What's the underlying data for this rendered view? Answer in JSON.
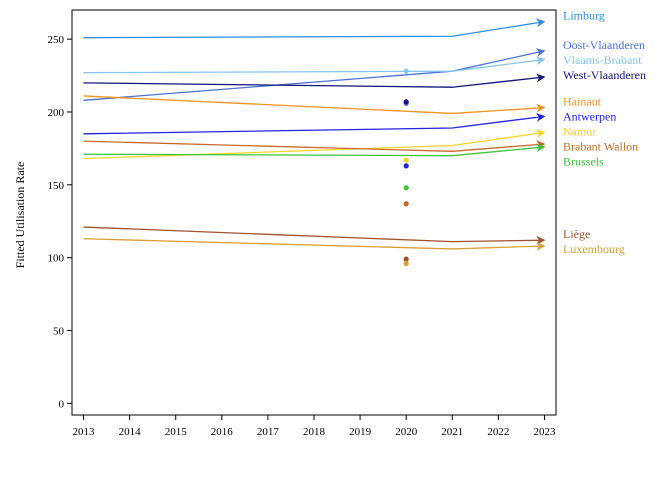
{
  "chart_data": {
    "type": "line",
    "title": "",
    "xlabel": "",
    "ylabel": "Fitted Utilisation Rate",
    "xlim": [
      2012.75,
      2023.25
    ],
    "ylim": [
      -8,
      270
    ],
    "x_ticks": [
      2013,
      2014,
      2015,
      2016,
      2017,
      2018,
      2019,
      2020,
      2021,
      2022,
      2023
    ],
    "y_ticks": [
      0,
      50,
      100,
      150,
      200,
      250
    ],
    "grid": false,
    "legend": "right (labels at line ends)",
    "series": [
      {
        "name": "Limburg",
        "color": "#2b8fe6",
        "x": [
          2013,
          2021,
          2023
        ],
        "y": [
          251,
          252,
          262
        ],
        "observed_2020": null
      },
      {
        "name": "Oost-Vlaanderen",
        "color": "#4a72d8",
        "x": [
          2013,
          2021,
          2023
        ],
        "y": [
          208,
          228,
          242
        ],
        "observed_2020": 206
      },
      {
        "name": "Vlaams-Brabant",
        "color": "#84c5ef",
        "x": [
          2013,
          2021,
          2023
        ],
        "y": [
          227,
          228,
          236
        ],
        "observed_2020": 228
      },
      {
        "name": "West-Vlaanderen",
        "color": "#13137a",
        "x": [
          2013,
          2021,
          2023
        ],
        "y": [
          220,
          217,
          224
        ],
        "observed_2020": 207
      },
      {
        "name": "Hainaut",
        "color": "#f5931e",
        "x": [
          2013,
          2021,
          2023
        ],
        "y": [
          211,
          199,
          203
        ],
        "observed_2020": null
      },
      {
        "name": "Antwerpen",
        "color": "#2222e6",
        "x": [
          2013,
          2021,
          2023
        ],
        "y": [
          185,
          189,
          197
        ],
        "observed_2020": 163
      },
      {
        "name": "Namur",
        "color": "#f7d228",
        "x": [
          2013,
          2021,
          2023
        ],
        "y": [
          168,
          177,
          186
        ],
        "observed_2020": 167
      },
      {
        "name": "Brabant Wallon",
        "color": "#c86a28",
        "x": [
          2013,
          2021,
          2023
        ],
        "y": [
          180,
          173,
          178
        ],
        "observed_2020": 137
      },
      {
        "name": "Brussels",
        "color": "#3cc43c",
        "x": [
          2013,
          2021,
          2023
        ],
        "y": [
          171,
          170,
          176
        ],
        "observed_2020": 148
      },
      {
        "name": "Liège",
        "color": "#a0522d",
        "x": [
          2013,
          2021,
          2023
        ],
        "y": [
          121,
          111,
          112
        ],
        "observed_2020": 99
      },
      {
        "name": "Luxembourg",
        "color": "#d9a030",
        "x": [
          2013,
          2021,
          2023
        ],
        "y": [
          113,
          106,
          108
        ],
        "observed_2020": 96
      }
    ]
  }
}
